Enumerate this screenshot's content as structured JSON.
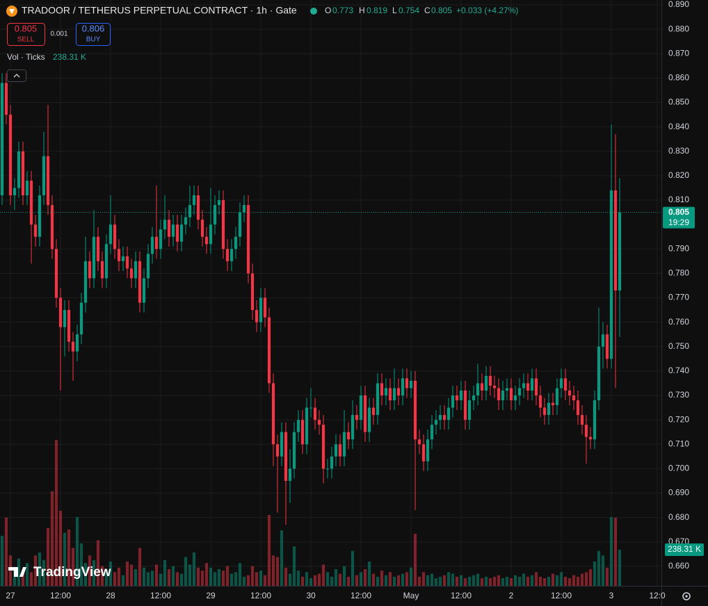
{
  "chart_data": {
    "type": "candlestick",
    "title": "TRADOOR / TETHERUS PERPETUAL CONTRACT · 1h · Gate",
    "ohlc_letters": [
      "O",
      "H",
      "L",
      "C"
    ],
    "change": "+0.033 (+4.27%)",
    "sell_label": "SELL",
    "buy_label": "BUY",
    "buy_price": 0.806,
    "spread": 0.001,
    "countdown": "19:29",
    "brand": "TradingView",
    "up_color": "#089981",
    "down_color": "#f23645",
    "grid": true,
    "xlim": [
      -2.5,
      156
    ],
    "ylim": [
      0.652,
      0.892
    ],
    "y2lim": [
      0,
      3860
    ],
    "xticks": [
      {
        "value": 0,
        "label": "27"
      },
      {
        "value": 12,
        "label": "12:00"
      },
      {
        "value": 24,
        "label": "28"
      },
      {
        "value": 36,
        "label": "12:00"
      },
      {
        "value": 48,
        "label": "29"
      },
      {
        "value": 60,
        "label": "12:00"
      },
      {
        "value": 72,
        "label": "30"
      },
      {
        "value": 84,
        "label": "12:00"
      },
      {
        "value": 96,
        "label": "May"
      },
      {
        "value": 108,
        "label": "12:00"
      },
      {
        "value": 120,
        "label": "2"
      },
      {
        "value": 132,
        "label": "12:00"
      },
      {
        "value": 144,
        "label": "3"
      },
      {
        "value": 155,
        "label": "12:0"
      }
    ],
    "yticks": [
      {
        "value": 0.89,
        "label": "0.890"
      },
      {
        "value": 0.88,
        "label": "0.880"
      },
      {
        "value": 0.87,
        "label": "0.870"
      },
      {
        "value": 0.86,
        "label": "0.860"
      },
      {
        "value": 0.85,
        "label": "0.850"
      },
      {
        "value": 0.84,
        "label": "0.840"
      },
      {
        "value": 0.83,
        "label": "0.830"
      },
      {
        "value": 0.82,
        "label": "0.820"
      },
      {
        "value": 0.81,
        "label": "0.810"
      },
      {
        "value": 0.79,
        "label": "0.790"
      },
      {
        "value": 0.78,
        "label": "0.780"
      },
      {
        "value": 0.77,
        "label": "0.770"
      },
      {
        "value": 0.76,
        "label": "0.760"
      },
      {
        "value": 0.75,
        "label": "0.750"
      },
      {
        "value": 0.74,
        "label": "0.740"
      },
      {
        "value": 0.73,
        "label": "0.730"
      },
      {
        "value": 0.72,
        "label": "0.720"
      },
      {
        "value": 0.71,
        "label": "0.710"
      },
      {
        "value": 0.7,
        "label": "0.700"
      },
      {
        "value": 0.69,
        "label": "0.690"
      },
      {
        "value": 0.68,
        "label": "0.680"
      },
      {
        "value": 0.67,
        "label": "0.670"
      },
      {
        "value": 0.66,
        "label": "0.660"
      }
    ],
    "x": [
      -2,
      -1,
      0,
      1,
      2,
      3,
      4,
      5,
      6,
      7,
      8,
      9,
      10,
      11,
      12,
      13,
      14,
      15,
      16,
      17,
      18,
      19,
      20,
      21,
      22,
      23,
      24,
      25,
      26,
      27,
      28,
      29,
      30,
      31,
      32,
      33,
      34,
      35,
      36,
      37,
      38,
      39,
      40,
      41,
      42,
      43,
      44,
      45,
      46,
      47,
      48,
      49,
      50,
      51,
      52,
      53,
      54,
      55,
      56,
      57,
      58,
      59,
      60,
      61,
      62,
      63,
      64,
      65,
      66,
      67,
      68,
      69,
      70,
      71,
      72,
      73,
      74,
      75,
      76,
      77,
      78,
      79,
      80,
      81,
      82,
      83,
      84,
      85,
      86,
      87,
      88,
      89,
      90,
      91,
      92,
      93,
      94,
      95,
      96,
      97,
      98,
      99,
      100,
      101,
      102,
      103,
      104,
      105,
      106,
      107,
      108,
      109,
      110,
      111,
      112,
      113,
      114,
      115,
      116,
      117,
      118,
      119,
      120,
      121,
      122,
      123,
      124,
      125,
      126,
      127,
      128,
      129,
      130,
      131,
      132,
      133,
      134,
      135,
      136,
      137,
      138,
      139,
      140,
      141,
      142,
      143,
      144,
      145,
      146
    ],
    "open": [
      0.812,
      0.858,
      0.845,
      0.812,
      0.815,
      0.83,
      0.812,
      0.818,
      0.8,
      0.795,
      0.812,
      0.828,
      0.808,
      0.79,
      0.77,
      0.758,
      0.765,
      0.752,
      0.748,
      0.755,
      0.768,
      0.785,
      0.778,
      0.795,
      0.785,
      0.778,
      0.792,
      0.8,
      0.79,
      0.785,
      0.787,
      0.782,
      0.778,
      0.785,
      0.768,
      0.778,
      0.788,
      0.795,
      0.79,
      0.798,
      0.802,
      0.795,
      0.8,
      0.793,
      0.8,
      0.803,
      0.808,
      0.812,
      0.802,
      0.795,
      0.792,
      0.8,
      0.808,
      0.81,
      0.79,
      0.785,
      0.79,
      0.795,
      0.805,
      0.808,
      0.78,
      0.765,
      0.76,
      0.77,
      0.762,
      0.735,
      0.71,
      0.705,
      0.715,
      0.695,
      0.7,
      0.715,
      0.72,
      0.71,
      0.725,
      0.725,
      0.72,
      0.718,
      0.7,
      0.7,
      0.705,
      0.71,
      0.705,
      0.715,
      0.712,
      0.722,
      0.72,
      0.73,
      0.715,
      0.725,
      0.722,
      0.735,
      0.73,
      0.733,
      0.728,
      0.733,
      0.73,
      0.737,
      0.733,
      0.736,
      0.712,
      0.71,
      0.703,
      0.712,
      0.718,
      0.72,
      0.722,
      0.72,
      0.725,
      0.73,
      0.728,
      0.732,
      0.72,
      0.728,
      0.73,
      0.735,
      0.732,
      0.738,
      0.734,
      0.733,
      0.728,
      0.732,
      0.733,
      0.728,
      0.73,
      0.733,
      0.735,
      0.732,
      0.737,
      0.73,
      0.725,
      0.722,
      0.727,
      0.726,
      0.733,
      0.737,
      0.732,
      0.73,
      0.728,
      0.722,
      0.718,
      0.713,
      0.712,
      0.728,
      0.75,
      0.755,
      0.745,
      0.814,
      0.773
    ],
    "high": [
      0.862,
      0.862,
      0.849,
      0.819,
      0.834,
      0.834,
      0.822,
      0.822,
      0.804,
      0.816,
      0.838,
      0.849,
      0.812,
      0.794,
      0.774,
      0.769,
      0.769,
      0.756,
      0.759,
      0.772,
      0.795,
      0.789,
      0.806,
      0.799,
      0.789,
      0.796,
      0.812,
      0.804,
      0.794,
      0.791,
      0.791,
      0.786,
      0.789,
      0.789,
      0.782,
      0.792,
      0.799,
      0.816,
      0.802,
      0.812,
      0.806,
      0.804,
      0.804,
      0.804,
      0.807,
      0.816,
      0.816,
      0.816,
      0.806,
      0.799,
      0.815,
      0.812,
      0.814,
      0.814,
      0.794,
      0.794,
      0.799,
      0.809,
      0.812,
      0.812,
      0.784,
      0.769,
      0.774,
      0.774,
      0.766,
      0.739,
      0.714,
      0.719,
      0.719,
      0.708,
      0.719,
      0.724,
      0.724,
      0.729,
      0.733,
      0.729,
      0.724,
      0.722,
      0.704,
      0.709,
      0.714,
      0.714,
      0.724,
      0.719,
      0.728,
      0.726,
      0.734,
      0.734,
      0.729,
      0.729,
      0.739,
      0.739,
      0.737,
      0.737,
      0.741,
      0.737,
      0.741,
      0.741,
      0.74,
      0.74,
      0.716,
      0.714,
      0.716,
      0.722,
      0.724,
      0.726,
      0.726,
      0.729,
      0.734,
      0.734,
      0.736,
      0.736,
      0.732,
      0.734,
      0.743,
      0.739,
      0.742,
      0.742,
      0.738,
      0.737,
      0.736,
      0.737,
      0.737,
      0.734,
      0.737,
      0.739,
      0.739,
      0.741,
      0.741,
      0.734,
      0.729,
      0.731,
      0.731,
      0.737,
      0.741,
      0.741,
      0.736,
      0.734,
      0.732,
      0.726,
      0.722,
      0.717,
      0.732,
      0.766,
      0.76,
      0.759,
      0.841,
      0.837,
      0.819
    ],
    "low": [
      0.808,
      0.841,
      0.808,
      0.806,
      0.811,
      0.808,
      0.808,
      0.784,
      0.791,
      0.791,
      0.808,
      0.804,
      0.786,
      0.766,
      0.732,
      0.746,
      0.748,
      0.736,
      0.744,
      0.751,
      0.764,
      0.774,
      0.774,
      0.781,
      0.774,
      0.774,
      0.788,
      0.786,
      0.781,
      0.781,
      0.778,
      0.774,
      0.774,
      0.764,
      0.764,
      0.774,
      0.784,
      0.786,
      0.786,
      0.794,
      0.791,
      0.791,
      0.789,
      0.789,
      0.796,
      0.799,
      0.804,
      0.798,
      0.791,
      0.788,
      0.788,
      0.796,
      0.804,
      0.786,
      0.781,
      0.781,
      0.786,
      0.791,
      0.801,
      0.776,
      0.761,
      0.756,
      0.756,
      0.758,
      0.731,
      0.701,
      0.682,
      0.701,
      0.677,
      0.686,
      0.696,
      0.711,
      0.706,
      0.706,
      0.721,
      0.716,
      0.714,
      0.694,
      0.696,
      0.696,
      0.701,
      0.701,
      0.701,
      0.708,
      0.708,
      0.716,
      0.716,
      0.711,
      0.711,
      0.718,
      0.718,
      0.726,
      0.726,
      0.724,
      0.724,
      0.726,
      0.726,
      0.729,
      0.729,
      0.683,
      0.706,
      0.699,
      0.699,
      0.708,
      0.714,
      0.716,
      0.716,
      0.716,
      0.721,
      0.724,
      0.724,
      0.716,
      0.716,
      0.724,
      0.726,
      0.728,
      0.728,
      0.73,
      0.729,
      0.724,
      0.724,
      0.728,
      0.724,
      0.724,
      0.726,
      0.729,
      0.728,
      0.728,
      0.726,
      0.721,
      0.718,
      0.718,
      0.722,
      0.722,
      0.729,
      0.728,
      0.726,
      0.724,
      0.718,
      0.714,
      0.702,
      0.708,
      0.708,
      0.724,
      0.741,
      0.741,
      0.741,
      0.733,
      0.754
    ],
    "close": [
      0.858,
      0.845,
      0.812,
      0.815,
      0.83,
      0.812,
      0.818,
      0.8,
      0.795,
      0.812,
      0.828,
      0.808,
      0.79,
      0.77,
      0.758,
      0.765,
      0.752,
      0.748,
      0.755,
      0.768,
      0.785,
      0.778,
      0.795,
      0.785,
      0.778,
      0.792,
      0.8,
      0.79,
      0.785,
      0.787,
      0.782,
      0.778,
      0.785,
      0.768,
      0.778,
      0.788,
      0.795,
      0.79,
      0.798,
      0.802,
      0.795,
      0.8,
      0.793,
      0.8,
      0.803,
      0.808,
      0.812,
      0.802,
      0.795,
      0.792,
      0.8,
      0.808,
      0.81,
      0.79,
      0.785,
      0.79,
      0.795,
      0.805,
      0.808,
      0.78,
      0.765,
      0.76,
      0.77,
      0.762,
      0.735,
      0.71,
      0.705,
      0.715,
      0.695,
      0.7,
      0.715,
      0.72,
      0.71,
      0.725,
      0.725,
      0.72,
      0.718,
      0.7,
      0.7,
      0.705,
      0.71,
      0.705,
      0.715,
      0.712,
      0.722,
      0.72,
      0.73,
      0.715,
      0.725,
      0.722,
      0.735,
      0.73,
      0.733,
      0.728,
      0.733,
      0.73,
      0.737,
      0.733,
      0.736,
      0.712,
      0.71,
      0.703,
      0.712,
      0.718,
      0.72,
      0.722,
      0.72,
      0.725,
      0.73,
      0.728,
      0.732,
      0.72,
      0.728,
      0.73,
      0.735,
      0.732,
      0.738,
      0.734,
      0.733,
      0.728,
      0.732,
      0.733,
      0.728,
      0.73,
      0.733,
      0.735,
      0.732,
      0.737,
      0.73,
      0.725,
      0.722,
      0.727,
      0.726,
      0.733,
      0.737,
      0.732,
      0.73,
      0.728,
      0.722,
      0.718,
      0.713,
      0.712,
      0.728,
      0.75,
      0.755,
      0.745,
      0.814,
      0.773,
      0.805
    ],
    "volume": {
      "name": "Vol · Ticks",
      "axis": "y2",
      "value_label": "238.31 K",
      "values": [
        330,
        450,
        200,
        120,
        180,
        100,
        150,
        90,
        200,
        220,
        170,
        380,
        623,
        962,
        495,
        350,
        371,
        250,
        453,
        280,
        150,
        200,
        170,
        300,
        130,
        110,
        160,
        90,
        120,
        70,
        160,
        140,
        110,
        250,
        120,
        90,
        100,
        140,
        80,
        170,
        110,
        130,
        90,
        80,
        190,
        140,
        220,
        120,
        100,
        150,
        120,
        90,
        110,
        100,
        130,
        80,
        90,
        150,
        60,
        70,
        130,
        90,
        100,
        70,
        467,
        200,
        190,
        366,
        120,
        80,
        260,
        100,
        60,
        90,
        50,
        70,
        80,
        140,
        90,
        60,
        110,
        80,
        130,
        60,
        230,
        70,
        90,
        110,
        160,
        80,
        60,
        100,
        70,
        90,
        60,
        70,
        80,
        90,
        120,
        343,
        60,
        90,
        70,
        80,
        50,
        60,
        70,
        90,
        80,
        60,
        70,
        50,
        60,
        70,
        80,
        50,
        60,
        50,
        60,
        70,
        50,
        60,
        50,
        70,
        60,
        80,
        60,
        70,
        90,
        60,
        50,
        60,
        80,
        70,
        90,
        60,
        50,
        70,
        60,
        80,
        90,
        110,
        160,
        230,
        200,
        120,
        453,
        449,
        238.31
      ]
    }
  }
}
